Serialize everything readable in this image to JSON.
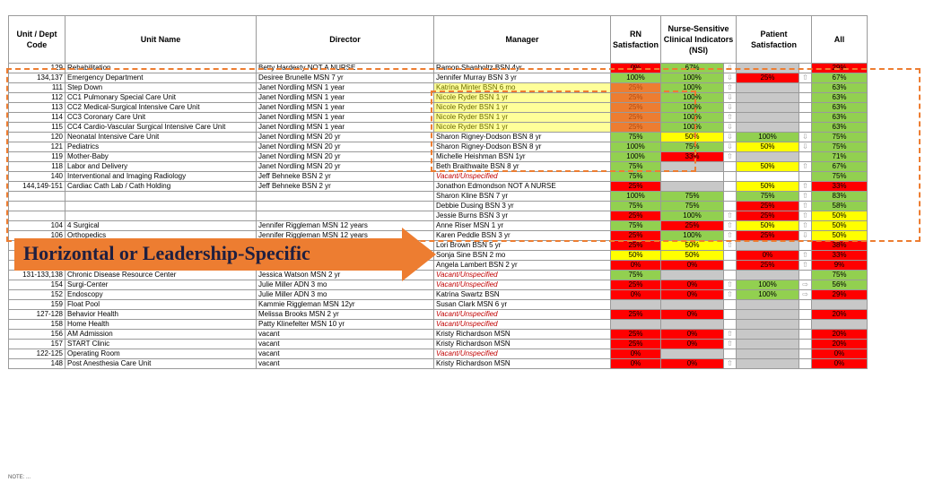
{
  "headers": {
    "code": "Unit / Dept Code",
    "name": "Unit Name",
    "director": "Director",
    "manager": "Manager",
    "rn": "RN Satisfaction",
    "nsi": "Nurse-Sensitive Clinical Indicators (NSI)",
    "patient": "Patient Satisfaction",
    "all": "All"
  },
  "banner": "Horizontal or Leadership-Specific",
  "footnote": "NOTE: ...",
  "colors": {
    "red": "#ff0000",
    "green": "#92d050",
    "yellow": "#ffff00",
    "gray": "#c8c8c8",
    "orange": "#ed7d31",
    "lemon": "#ffff99"
  },
  "rows": [
    {
      "code": "129",
      "name": "Rehabilitation",
      "director": "Betty Hardesty NOT A NURSE",
      "manager": "Ramon Shanholtz BSN 4yr",
      "mgr_style": "",
      "rn": "0%",
      "rn_c": "red",
      "nsi": "67%",
      "nsi_c": "green",
      "nsi_a": "arrow-down-icon",
      "pat": "",
      "pat_c": "gray",
      "pat_a": "",
      "all": "29%",
      "all_c": "red"
    },
    {
      "code": "134,137",
      "name": "Emergency Department",
      "director": "Desiree Brunelle MSN 7 yr",
      "manager": "Jennifer Murray BSN 3 yr",
      "mgr_style": "",
      "rn": "100%",
      "rn_c": "green",
      "nsi": "100%",
      "nsi_c": "green",
      "nsi_a": "arrow-down-icon",
      "pat": "25%",
      "pat_c": "red",
      "pat_a": "arrow-up-icon",
      "all": "67%",
      "all_c": "green"
    },
    {
      "code": "111",
      "name": "Step Down",
      "director": "Janet Nordling MSN 1 year",
      "manager": "Katrina Minter BSN 6 mo",
      "mgr_style": "y",
      "rn": "25%",
      "rn_c": "orange",
      "nsi": "100%",
      "nsi_c": "green",
      "nsi_a": "arrow-up-icon",
      "pat": "",
      "pat_c": "gray",
      "pat_a": "",
      "all": "63%",
      "all_c": "green"
    },
    {
      "code": "112",
      "name": "CC1 Pulmonary Special Care Unit",
      "director": "Janet Nordling MSN 1 year",
      "manager": "Nicole Ryder BSN 1 yr",
      "mgr_style": "y",
      "rn": "25%",
      "rn_c": "orange",
      "nsi": "100%",
      "nsi_c": "green",
      "nsi_a": "arrow-down-icon",
      "pat": "",
      "pat_c": "gray",
      "pat_a": "",
      "all": "63%",
      "all_c": "green"
    },
    {
      "code": "113",
      "name": "CC2 Medical-Surgical Intensive Care Unit",
      "director": "Janet Nordling MSN 1 year",
      "manager": "Nicole Ryder BSN 1 yr",
      "mgr_style": "y",
      "rn": "25%",
      "rn_c": "orange",
      "nsi": "100%",
      "nsi_c": "green",
      "nsi_a": "arrow-down-icon",
      "pat": "",
      "pat_c": "gray",
      "pat_a": "",
      "all": "63%",
      "all_c": "green"
    },
    {
      "code": "114",
      "name": "CC3 Coronary Care Unit",
      "director": "Janet Nordling MSN 1 year",
      "manager": "Nicole Ryder BSN 1 yr",
      "mgr_style": "y",
      "rn": "25%",
      "rn_c": "orange",
      "nsi": "100%",
      "nsi_c": "green",
      "nsi_a": "arrow-up-icon",
      "pat": "",
      "pat_c": "gray",
      "pat_a": "",
      "all": "63%",
      "all_c": "green"
    },
    {
      "code": "115",
      "name": "CC4 Cardio-Vascular Surgical Intensive Care Unit",
      "director": "Janet Nordling MSN 1 year",
      "manager": "Nicole Ryder BSN 1 yr",
      "mgr_style": "y",
      "rn": "25%",
      "rn_c": "orange",
      "nsi": "100%",
      "nsi_c": "green",
      "nsi_a": "arrow-down-icon",
      "pat": "",
      "pat_c": "gray",
      "pat_a": "",
      "all": "63%",
      "all_c": "green"
    },
    {
      "code": "120",
      "name": "Neonatal Intensive Care Unit",
      "director": "Janet Nordling MSN 20 yr",
      "manager": "Sharon Rigney-Dodson BSN 8 yr",
      "mgr_style": "",
      "rn": "75%",
      "rn_c": "green",
      "nsi": "50%",
      "nsi_c": "yellow",
      "nsi_a": "arrow-down-icon",
      "pat": "100%",
      "pat_c": "green",
      "pat_a": "arrow-down-icon",
      "all": "75%",
      "all_c": "green"
    },
    {
      "code": "121",
      "name": "Pediatrics",
      "director": "Janet Nordling MSN 20 yr",
      "manager": "Sharon Rigney-Dodson BSN 8 yr",
      "mgr_style": "",
      "rn": "100%",
      "rn_c": "green",
      "nsi": "75%",
      "nsi_c": "green",
      "nsi_a": "arrow-down-icon",
      "pat": "50%",
      "pat_c": "yellow",
      "pat_a": "arrow-down-icon",
      "all": "75%",
      "all_c": "green"
    },
    {
      "code": "119",
      "name": "Mother-Baby",
      "director": "Janet Nordling MSN 20 yr",
      "manager": "Michelle Heishman BSN 1yr",
      "mgr_style": "",
      "rn": "100%",
      "rn_c": "green",
      "nsi": "33%",
      "nsi_c": "red",
      "nsi_a": "arrow-up-icon",
      "pat": "",
      "pat_c": "gray",
      "pat_a": "",
      "all": "71%",
      "all_c": "green"
    },
    {
      "code": "118",
      "name": "Labor and Delivery",
      "director": "Janet Nordling MSN 20 yr",
      "manager": "Beth Braithwaite BSN 8 yr",
      "mgr_style": "",
      "rn": "75%",
      "rn_c": "green",
      "nsi": "",
      "nsi_c": "gray",
      "nsi_a": "",
      "pat": "50%",
      "pat_c": "yellow",
      "pat_a": "arrow-up-icon",
      "all": "67%",
      "all_c": "green"
    },
    {
      "code": "140",
      "name": "Interventional and Imaging Radiology",
      "director": "Jeff Behneke BSN 2 yr",
      "manager": "Vacant/Unspecified",
      "mgr_style": "v",
      "rn": "75%",
      "rn_c": "green",
      "nsi": "",
      "nsi_c": "none",
      "nsi_a": "",
      "pat": "",
      "pat_c": "none",
      "pat_a": "",
      "all": "75%",
      "all_c": "green"
    },
    {
      "code": "144,149-151",
      "name": "Cardiac Cath Lab / Cath Holding",
      "director": "Jeff Behneke BSN 2 yr",
      "manager": "Jonathon Edmondson NOT A NURSE",
      "mgr_style": "",
      "rn": "25%",
      "rn_c": "red",
      "nsi": "",
      "nsi_c": "gray",
      "nsi_a": "",
      "pat": "50%",
      "pat_c": "yellow",
      "pat_a": "arrow-up-icon",
      "all": "33%",
      "all_c": "red"
    },
    {
      "code": "",
      "name": "",
      "director": "",
      "manager": "Sharon Kline BSN 7 yr",
      "mgr_style": "",
      "rn": "100%",
      "rn_c": "green",
      "nsi": "75%",
      "nsi_c": "green",
      "nsi_a": "",
      "pat": "75%",
      "pat_c": "green",
      "pat_a": "arrow-up-icon",
      "all": "83%",
      "all_c": "green"
    },
    {
      "code": "",
      "name": "",
      "director": "",
      "manager": "Debbie Dusing BSN 3 yr",
      "mgr_style": "",
      "rn": "75%",
      "rn_c": "green",
      "nsi": "75%",
      "nsi_c": "green",
      "nsi_a": "",
      "pat": "25%",
      "pat_c": "red",
      "pat_a": "arrow-up-icon",
      "all": "58%",
      "all_c": "green"
    },
    {
      "code": "",
      "name": "",
      "director": "",
      "manager": "Jessie Burns BSN 3 yr",
      "mgr_style": "",
      "rn": "25%",
      "rn_c": "red",
      "nsi": "100%",
      "nsi_c": "green",
      "nsi_a": "arrow-up-icon",
      "pat": "25%",
      "pat_c": "red",
      "pat_a": "arrow-up-icon",
      "all": "50%",
      "all_c": "yellow"
    },
    {
      "code": "104",
      "name": "4 Surgical",
      "director": "Jennifer Riggleman MSN 12 years",
      "manager": "Anne Riser MSN 1 yr",
      "mgr_style": "",
      "rn": "75%",
      "rn_c": "green",
      "nsi": "25%",
      "nsi_c": "red",
      "nsi_a": "arrow-up-icon",
      "pat": "50%",
      "pat_c": "yellow",
      "pat_a": "arrow-up-icon",
      "all": "50%",
      "all_c": "yellow"
    },
    {
      "code": "106",
      "name": "Orthopedics",
      "director": "Jennifer Riggleman MSN 12 years",
      "manager": "Karen Peddle BSN 3 yr",
      "mgr_style": "",
      "rn": "25%",
      "rn_c": "red",
      "nsi": "100%",
      "nsi_c": "green",
      "nsi_a": "arrow-up-icon",
      "pat": "25%",
      "pat_c": "red",
      "pat_a": "arrow-down-icon",
      "all": "50%",
      "all_c": "yellow"
    },
    {
      "code": "108",
      "name": "Surgical Telemetry",
      "director": "Jennifer Riggleman MSN 12 years",
      "manager": "Lori Brown BSN 5 yr",
      "mgr_style": "",
      "rn": "25%",
      "rn_c": "red",
      "nsi": "50%",
      "nsi_c": "yellow",
      "nsi_a": "arrow-up-icon",
      "pat": "",
      "pat_c": "gray",
      "pat_a": "",
      "all": "38%",
      "all_c": "red"
    },
    {
      "code": "110",
      "name": "Neurology Unit",
      "director": "Jennifer Riggleman MSN 12 years",
      "manager": "Sonja Sine BSN 2 mo",
      "mgr_style": "",
      "rn": "50%",
      "rn_c": "yellow",
      "nsi": "50%",
      "nsi_c": "yellow",
      "nsi_a": "",
      "pat": "0%",
      "pat_c": "red",
      "pat_a": "arrow-up-icon",
      "all": "33%",
      "all_c": "red"
    },
    {
      "code": "101",
      "name": "5 Medical",
      "director": "Jennifer Riggleman MSN 12 years",
      "manager": "Angela Lambert BSN 2 yr",
      "mgr_style": "",
      "rn": "0%",
      "rn_c": "red",
      "nsi": "0%",
      "nsi_c": "red",
      "nsi_a": "",
      "pat": "25%",
      "pat_c": "red",
      "pat_a": "arrow-up-icon",
      "all": "9%",
      "all_c": "red"
    },
    {
      "code": "131-133,138",
      "name": "Chronic Disease Resource Center",
      "director": "Jessica Watson MSN 2 yr",
      "manager": "Vacant/Unspecified",
      "mgr_style": "v",
      "rn": "75%",
      "rn_c": "green",
      "nsi": "",
      "nsi_c": "gray",
      "nsi_a": "",
      "pat": "",
      "pat_c": "gray",
      "pat_a": "",
      "all": "75%",
      "all_c": "green"
    },
    {
      "code": "154",
      "name": "Surgi-Center",
      "director": "Julie Miller ADN 3 mo",
      "manager": "Vacant/Unspecified",
      "mgr_style": "v",
      "rn": "25%",
      "rn_c": "red",
      "nsi": "0%",
      "nsi_c": "red",
      "nsi_a": "arrow-up-icon",
      "pat": "100%",
      "pat_c": "green",
      "pat_a": "arrow-right-icon",
      "all": "56%",
      "all_c": "green"
    },
    {
      "code": "152",
      "name": "Endoscopy",
      "director": "Julie Miller ADN 3 mo",
      "manager": "Katrina Swartz BSN",
      "mgr_style": "",
      "rn": "0%",
      "rn_c": "red",
      "nsi": "0%",
      "nsi_c": "red",
      "nsi_a": "arrow-up-icon",
      "pat": "100%",
      "pat_c": "green",
      "pat_a": "arrow-right-icon",
      "all": "29%",
      "all_c": "red"
    },
    {
      "code": "159",
      "name": "Float Pool",
      "director": "Kammie Riggleman MSN 12yr",
      "manager": "Susan Clark MSN 6 yr",
      "mgr_style": "",
      "rn": "",
      "rn_c": "gray",
      "nsi": "",
      "nsi_c": "gray",
      "nsi_a": "",
      "pat": "",
      "pat_c": "gray",
      "pat_a": "",
      "all": "",
      "all_c": "gray"
    },
    {
      "code": "127-128",
      "name": "Behavior Health",
      "director": "Melissa Brooks MSN 2 yr",
      "manager": "Vacant/Unspecified",
      "mgr_style": "v",
      "rn": "25%",
      "rn_c": "red",
      "nsi": "0%",
      "nsi_c": "red",
      "nsi_a": "",
      "pat": "",
      "pat_c": "gray",
      "pat_a": "",
      "all": "20%",
      "all_c": "red"
    },
    {
      "code": "158",
      "name": "Home Health",
      "director": "Patty Klinefelter MSN 10 yr",
      "manager": "Vacant/Unspecified",
      "mgr_style": "v",
      "rn": "",
      "rn_c": "gray",
      "nsi": "",
      "nsi_c": "gray",
      "nsi_a": "",
      "pat": "",
      "pat_c": "gray",
      "pat_a": "",
      "all": "",
      "all_c": "gray"
    },
    {
      "code": "156",
      "name": "AM Admission",
      "director": "vacant",
      "manager": "Kristy Richardson MSN",
      "mgr_style": "",
      "rn": "25%",
      "rn_c": "red",
      "nsi": "0%",
      "nsi_c": "red",
      "nsi_a": "arrow-up-icon",
      "pat": "",
      "pat_c": "gray",
      "pat_a": "",
      "all": "20%",
      "all_c": "red"
    },
    {
      "code": "157",
      "name": "START Clinic",
      "director": "vacant",
      "manager": "Kristy Richardson MSN",
      "mgr_style": "",
      "rn": "25%",
      "rn_c": "red",
      "nsi": "0%",
      "nsi_c": "red",
      "nsi_a": "arrow-up-icon",
      "pat": "",
      "pat_c": "gray",
      "pat_a": "",
      "all": "20%",
      "all_c": "red"
    },
    {
      "code": "122-125",
      "name": "Operating Room",
      "director": "vacant",
      "manager": "Vacant/Unspecified",
      "mgr_style": "v",
      "rn": "0%",
      "rn_c": "red",
      "nsi": "",
      "nsi_c": "gray",
      "nsi_a": "",
      "pat": "",
      "pat_c": "gray",
      "pat_a": "",
      "all": "0%",
      "all_c": "red"
    },
    {
      "code": "148",
      "name": "Post Anesthesia Care Unit",
      "director": "vacant",
      "manager": "Kristy Richardson MSN",
      "mgr_style": "",
      "rn": "0%",
      "rn_c": "red",
      "nsi": "0%",
      "nsi_c": "red",
      "nsi_a": "arrow-up-icon",
      "pat": "",
      "pat_c": "gray",
      "pat_a": "",
      "all": "0%",
      "all_c": "red"
    }
  ]
}
